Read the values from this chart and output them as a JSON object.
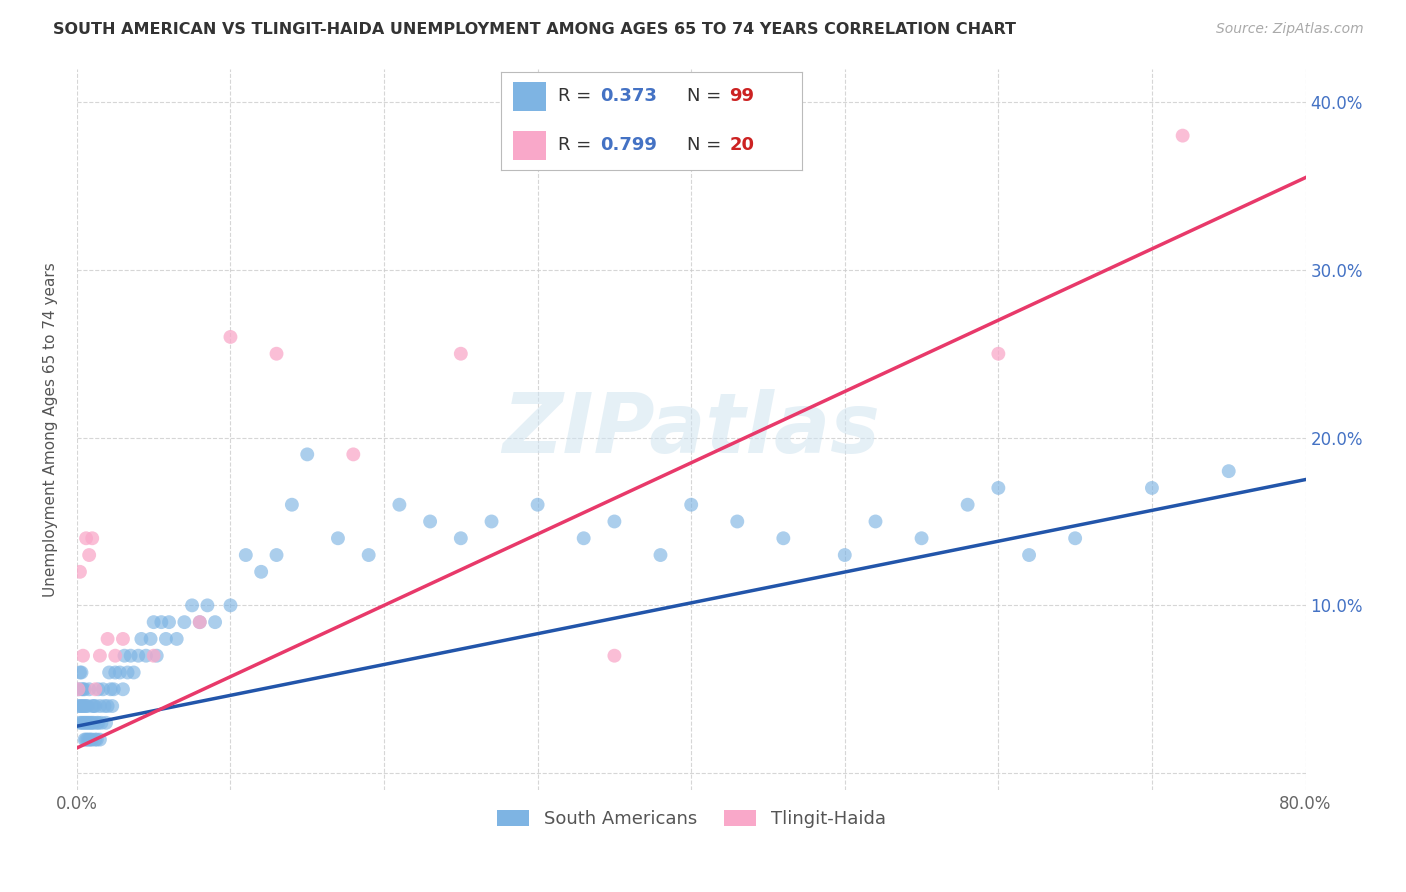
{
  "title": "SOUTH AMERICAN VS TLINGIT-HAIDA UNEMPLOYMENT AMONG AGES 65 TO 74 YEARS CORRELATION CHART",
  "source": "Source: ZipAtlas.com",
  "ylabel": "Unemployment Among Ages 65 to 74 years",
  "xlim": [
    0.0,
    0.8
  ],
  "ylim": [
    -0.01,
    0.42
  ],
  "xticks": [
    0.0,
    0.1,
    0.2,
    0.3,
    0.4,
    0.5,
    0.6,
    0.7,
    0.8
  ],
  "xtick_labels": [
    "0.0%",
    "",
    "",
    "",
    "",
    "",
    "",
    "",
    "80.0%"
  ],
  "yticks": [
    0.0,
    0.1,
    0.2,
    0.3,
    0.4
  ],
  "ytick_labels_right": [
    "",
    "10.0%",
    "20.0%",
    "30.0%",
    "40.0%"
  ],
  "sa_color": "#7EB4E3",
  "sa_line_color": "#2255AA",
  "th_color": "#F9A8C9",
  "th_line_color": "#E8396A",
  "sa_R": 0.373,
  "sa_N": 99,
  "th_R": 0.799,
  "th_N": 20,
  "watermark": "ZIPatlas",
  "legend_labels": [
    "South Americans",
    "Tlingit-Haida"
  ],
  "background_color": "#ffffff",
  "grid_color": "#cccccc",
  "sa_scatter_x": [
    0.001,
    0.001,
    0.002,
    0.002,
    0.002,
    0.003,
    0.003,
    0.003,
    0.003,
    0.004,
    0.004,
    0.004,
    0.005,
    0.005,
    0.005,
    0.005,
    0.006,
    0.006,
    0.006,
    0.007,
    0.007,
    0.007,
    0.008,
    0.008,
    0.008,
    0.009,
    0.009,
    0.01,
    0.01,
    0.01,
    0.011,
    0.011,
    0.012,
    0.012,
    0.013,
    0.013,
    0.014,
    0.014,
    0.015,
    0.015,
    0.016,
    0.017,
    0.018,
    0.019,
    0.02,
    0.021,
    0.022,
    0.023,
    0.024,
    0.025,
    0.028,
    0.03,
    0.031,
    0.033,
    0.035,
    0.037,
    0.04,
    0.042,
    0.045,
    0.048,
    0.05,
    0.052,
    0.055,
    0.058,
    0.06,
    0.065,
    0.07,
    0.075,
    0.08,
    0.085,
    0.09,
    0.1,
    0.11,
    0.12,
    0.13,
    0.14,
    0.15,
    0.17,
    0.19,
    0.21,
    0.23,
    0.25,
    0.27,
    0.3,
    0.33,
    0.35,
    0.38,
    0.4,
    0.43,
    0.46,
    0.5,
    0.52,
    0.55,
    0.58,
    0.6,
    0.62,
    0.65,
    0.7,
    0.75
  ],
  "sa_scatter_y": [
    0.04,
    0.05,
    0.03,
    0.04,
    0.06,
    0.03,
    0.04,
    0.05,
    0.06,
    0.03,
    0.04,
    0.05,
    0.02,
    0.03,
    0.04,
    0.05,
    0.02,
    0.03,
    0.04,
    0.02,
    0.03,
    0.04,
    0.02,
    0.03,
    0.05,
    0.02,
    0.03,
    0.02,
    0.03,
    0.04,
    0.03,
    0.04,
    0.02,
    0.04,
    0.02,
    0.03,
    0.03,
    0.05,
    0.02,
    0.04,
    0.03,
    0.05,
    0.04,
    0.03,
    0.04,
    0.06,
    0.05,
    0.04,
    0.05,
    0.06,
    0.06,
    0.05,
    0.07,
    0.06,
    0.07,
    0.06,
    0.07,
    0.08,
    0.07,
    0.08,
    0.09,
    0.07,
    0.09,
    0.08,
    0.09,
    0.08,
    0.09,
    0.1,
    0.09,
    0.1,
    0.09,
    0.1,
    0.13,
    0.12,
    0.13,
    0.16,
    0.19,
    0.14,
    0.13,
    0.16,
    0.15,
    0.14,
    0.15,
    0.16,
    0.14,
    0.15,
    0.13,
    0.16,
    0.15,
    0.14,
    0.13,
    0.15,
    0.14,
    0.16,
    0.17,
    0.13,
    0.14,
    0.17,
    0.18
  ],
  "th_scatter_x": [
    0.001,
    0.002,
    0.004,
    0.006,
    0.008,
    0.01,
    0.012,
    0.015,
    0.02,
    0.025,
    0.03,
    0.05,
    0.08,
    0.1,
    0.13,
    0.18,
    0.25,
    0.35,
    0.6,
    0.72
  ],
  "th_scatter_y": [
    0.05,
    0.12,
    0.07,
    0.14,
    0.13,
    0.14,
    0.05,
    0.07,
    0.08,
    0.07,
    0.08,
    0.07,
    0.09,
    0.26,
    0.25,
    0.19,
    0.25,
    0.07,
    0.25,
    0.38
  ],
  "sa_trend_x": [
    0.0,
    0.8
  ],
  "sa_trend_y": [
    0.028,
    0.175
  ],
  "th_trend_x": [
    0.0,
    0.8
  ],
  "th_trend_y": [
    0.015,
    0.355
  ]
}
